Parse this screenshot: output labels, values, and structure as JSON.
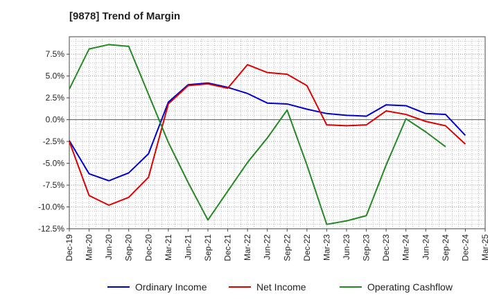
{
  "chart_data": {
    "type": "line",
    "title": "[9878]  Trend of Margin",
    "xlabel": "",
    "ylabel": "",
    "x": [
      "Dec-19",
      "Mar-20",
      "Jun-20",
      "Sep-20",
      "Dec-20",
      "Mar-21",
      "Jun-21",
      "Sep-21",
      "Dec-21",
      "Mar-22",
      "Jun-22",
      "Sep-22",
      "Dec-22",
      "Mar-23",
      "Jun-23",
      "Sep-23",
      "Dec-23",
      "Mar-24",
      "Jun-24",
      "Sep-24",
      "Dec-24",
      "Mar-25"
    ],
    "ylim": [
      -12.5,
      9.5
    ],
    "yticks": [
      -12.5,
      -10.0,
      -7.5,
      -5.0,
      -2.5,
      0.0,
      2.5,
      5.0,
      7.5
    ],
    "ytick_labels": [
      "-12.5%",
      "-10.0%",
      "-7.5%",
      "-5.0%",
      "-2.5%",
      "0.0%",
      "2.5%",
      "5.0%",
      "7.5%"
    ],
    "grid": true,
    "legend_position": "bottom",
    "series": [
      {
        "name": "Ordinary Income",
        "color": "#0000cc",
        "values": [
          -2.4,
          -6.2,
          -7.0,
          -6.1,
          -3.9,
          2.0,
          4.0,
          4.2,
          3.7,
          3.0,
          1.9,
          1.8,
          1.2,
          0.7,
          0.5,
          0.4,
          1.7,
          1.6,
          0.7,
          0.6,
          -1.8,
          null
        ]
      },
      {
        "name": "Net Income",
        "color": "#dd0000",
        "values": [
          -2.5,
          -8.7,
          -9.8,
          -8.9,
          -6.6,
          1.8,
          3.9,
          4.1,
          3.6,
          6.3,
          5.4,
          5.2,
          3.9,
          -0.6,
          -0.7,
          -0.6,
          1.0,
          0.6,
          -0.2,
          -0.7,
          -2.8,
          null
        ]
      },
      {
        "name": "Operating Cashflow",
        "color": "#228822",
        "values": [
          3.5,
          8.1,
          8.6,
          8.4,
          2.9,
          -2.6,
          -7.2,
          -11.5,
          -8.2,
          -4.9,
          -2.1,
          1.1,
          -5.2,
          -12.0,
          -11.6,
          -11.0,
          -5.2,
          0.1,
          -1.4,
          -3.1,
          null,
          null
        ]
      }
    ]
  }
}
